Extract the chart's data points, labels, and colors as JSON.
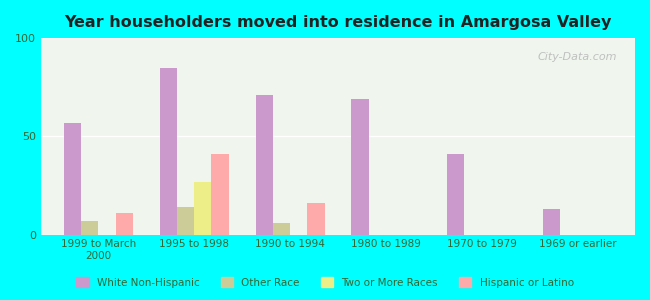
{
  "title": "Year householders moved into residence in Amargosa Valley",
  "categories": [
    "1999 to March\n2000",
    "1995 to 1998",
    "1990 to 1994",
    "1980 to 1989",
    "1970 to 1979",
    "1969 or earlier"
  ],
  "series": {
    "White Non-Hispanic": [
      57,
      85,
      71,
      69,
      41,
      13
    ],
    "Other Race": [
      7,
      14,
      6,
      0,
      0,
      0
    ],
    "Two or More Races": [
      0,
      27,
      0,
      0,
      0,
      0
    ],
    "Hispanic or Latino": [
      11,
      41,
      16,
      0,
      0,
      0
    ]
  },
  "colors": {
    "White Non-Hispanic": "#cc99cc",
    "Other Race": "#cccc99",
    "Two or More Races": "#eeee88",
    "Hispanic or Latino": "#ffaaaa"
  },
  "ylim": [
    0,
    100
  ],
  "yticks": [
    0,
    50,
    100
  ],
  "background_outer": "#00ffff",
  "background_plot": "#f0f5ee",
  "watermark": "City-Data.com",
  "bar_width": 0.18
}
